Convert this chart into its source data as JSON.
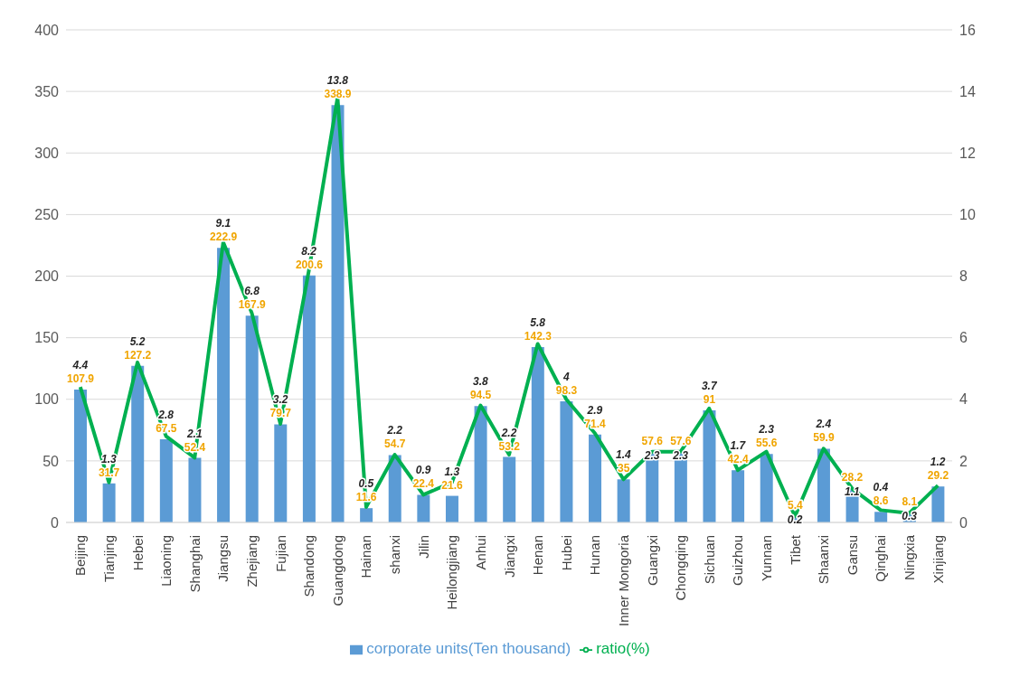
{
  "chart_data": {
    "type": "bar",
    "categories": [
      "Beijing",
      "Tianjing",
      "Hebei",
      "Liaoning",
      "Shanghai",
      "Jiangsu",
      "Zhejiang",
      "Fujian",
      "Shandong",
      "Guangdong",
      "Hainan",
      "shanxi",
      "Jilin",
      "Heilongjiang",
      "Anhui",
      "Jiangxi",
      "Henan",
      "Hubei",
      "Hunan",
      "Inner Mongoria",
      "Guangxi",
      "Chongqing",
      "Sichuan",
      "Guizhou",
      "Yunnan",
      "Tibet",
      "Shaanxi",
      "Gansu",
      "Qinghai",
      "Ningxia",
      "Xinjiang"
    ],
    "series": [
      {
        "name": "corporate units(Ten thousand)",
        "color": "#5b9bd5",
        "values": [
          107.9,
          31.7,
          127.2,
          67.5,
          52.4,
          222.9,
          167.9,
          79.7,
          200.6,
          338.9,
          11.6,
          54.7,
          22.4,
          21.6,
          94.5,
          53.2,
          142.3,
          98.3,
          71.4,
          35,
          57.6,
          57.6,
          91,
          42.4,
          55.6,
          5.4,
          59.9,
          28.2,
          8.6,
          8.1,
          29.2
        ]
      },
      {
        "name": "ratio(%)",
        "type": "line",
        "axis": "y2",
        "color": "#00b050",
        "values": [
          4.4,
          1.3,
          5.2,
          2.8,
          2.1,
          9.1,
          6.8,
          3.2,
          8.2,
          13.8,
          0.5,
          2.2,
          0.9,
          1.3,
          3.8,
          2.2,
          5.8,
          4,
          2.9,
          1.4,
          2.3,
          2.3,
          3.7,
          1.7,
          2.3,
          0.2,
          2.4,
          1.1,
          0.4,
          0.3,
          1.2
        ]
      }
    ],
    "ylim": [
      0,
      400
    ],
    "yticks": [
      0,
      50,
      100,
      150,
      200,
      250,
      300,
      350,
      400
    ],
    "y2lim": [
      0,
      16
    ],
    "y2ticks": [
      0,
      2,
      4,
      6,
      8,
      10,
      12,
      14,
      16
    ],
    "grid": "y",
    "legend": "bottom",
    "data_labels": true,
    "marker": "none"
  }
}
